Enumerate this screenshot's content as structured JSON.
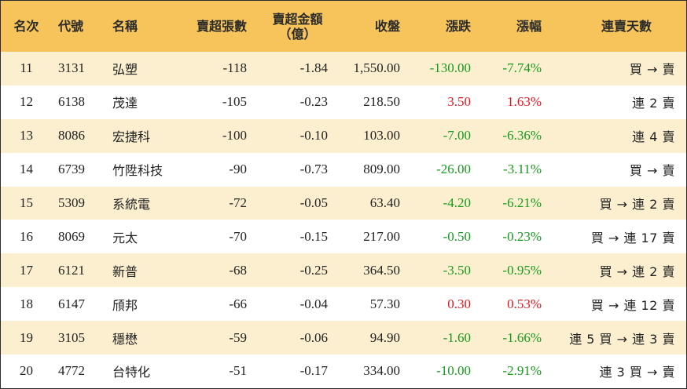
{
  "headers": {
    "rank": "名次",
    "code": "代號",
    "name": "名稱",
    "lots": "賣超張數",
    "amount_line1": "賣超金額",
    "amount_line2": "（億）",
    "close": "收盤",
    "change": "漲跌",
    "pct": "漲幅",
    "streak": "連賣天數"
  },
  "colors": {
    "header_bg": "#f6c45a",
    "stripe_bg": "#fcefcf",
    "up": "#e8141a",
    "down": "#159b1c"
  },
  "rows": [
    {
      "rank": "11",
      "code": "3131",
      "name": "弘塑",
      "lots": "-118",
      "amount": "-1.84",
      "close": "1,550.00",
      "change": "-130.00",
      "pct": "-7.74%",
      "dir": "down",
      "streak": "買 → 賣"
    },
    {
      "rank": "12",
      "code": "6138",
      "name": "茂達",
      "lots": "-105",
      "amount": "-0.23",
      "close": "218.50",
      "change": "3.50",
      "pct": "1.63%",
      "dir": "up",
      "streak": "連 2 賣"
    },
    {
      "rank": "13",
      "code": "8086",
      "name": "宏捷科",
      "lots": "-100",
      "amount": "-0.10",
      "close": "103.00",
      "change": "-7.00",
      "pct": "-6.36%",
      "dir": "down",
      "streak": "連 4 賣"
    },
    {
      "rank": "14",
      "code": "6739",
      "name": "竹陞科技",
      "lots": "-90",
      "amount": "-0.73",
      "close": "809.00",
      "change": "-26.00",
      "pct": "-3.11%",
      "dir": "down",
      "streak": "買 → 賣"
    },
    {
      "rank": "15",
      "code": "5309",
      "name": "系統電",
      "lots": "-72",
      "amount": "-0.05",
      "close": "63.40",
      "change": "-4.20",
      "pct": "-6.21%",
      "dir": "down",
      "streak": "買 → 連 2 賣"
    },
    {
      "rank": "16",
      "code": "8069",
      "name": "元太",
      "lots": "-70",
      "amount": "-0.15",
      "close": "217.00",
      "change": "-0.50",
      "pct": "-0.23%",
      "dir": "down",
      "streak": "買 → 連 17 賣"
    },
    {
      "rank": "17",
      "code": "6121",
      "name": "新普",
      "lots": "-68",
      "amount": "-0.25",
      "close": "364.50",
      "change": "-3.50",
      "pct": "-0.95%",
      "dir": "down",
      "streak": "買 → 連 2 賣"
    },
    {
      "rank": "18",
      "code": "6147",
      "name": "頎邦",
      "lots": "-66",
      "amount": "-0.04",
      "close": "57.30",
      "change": "0.30",
      "pct": "0.53%",
      "dir": "up",
      "streak": "買 → 連 12 賣"
    },
    {
      "rank": "19",
      "code": "3105",
      "name": "穩懋",
      "lots": "-59",
      "amount": "-0.06",
      "close": "94.90",
      "change": "-1.60",
      "pct": "-1.66%",
      "dir": "down",
      "streak": "連 5 買 → 連 3 賣"
    },
    {
      "rank": "20",
      "code": "4772",
      "name": "台特化",
      "lots": "-51",
      "amount": "-0.17",
      "close": "334.00",
      "change": "-10.00",
      "pct": "-2.91%",
      "dir": "down",
      "streak": "連 3 買 → 賣"
    }
  ]
}
